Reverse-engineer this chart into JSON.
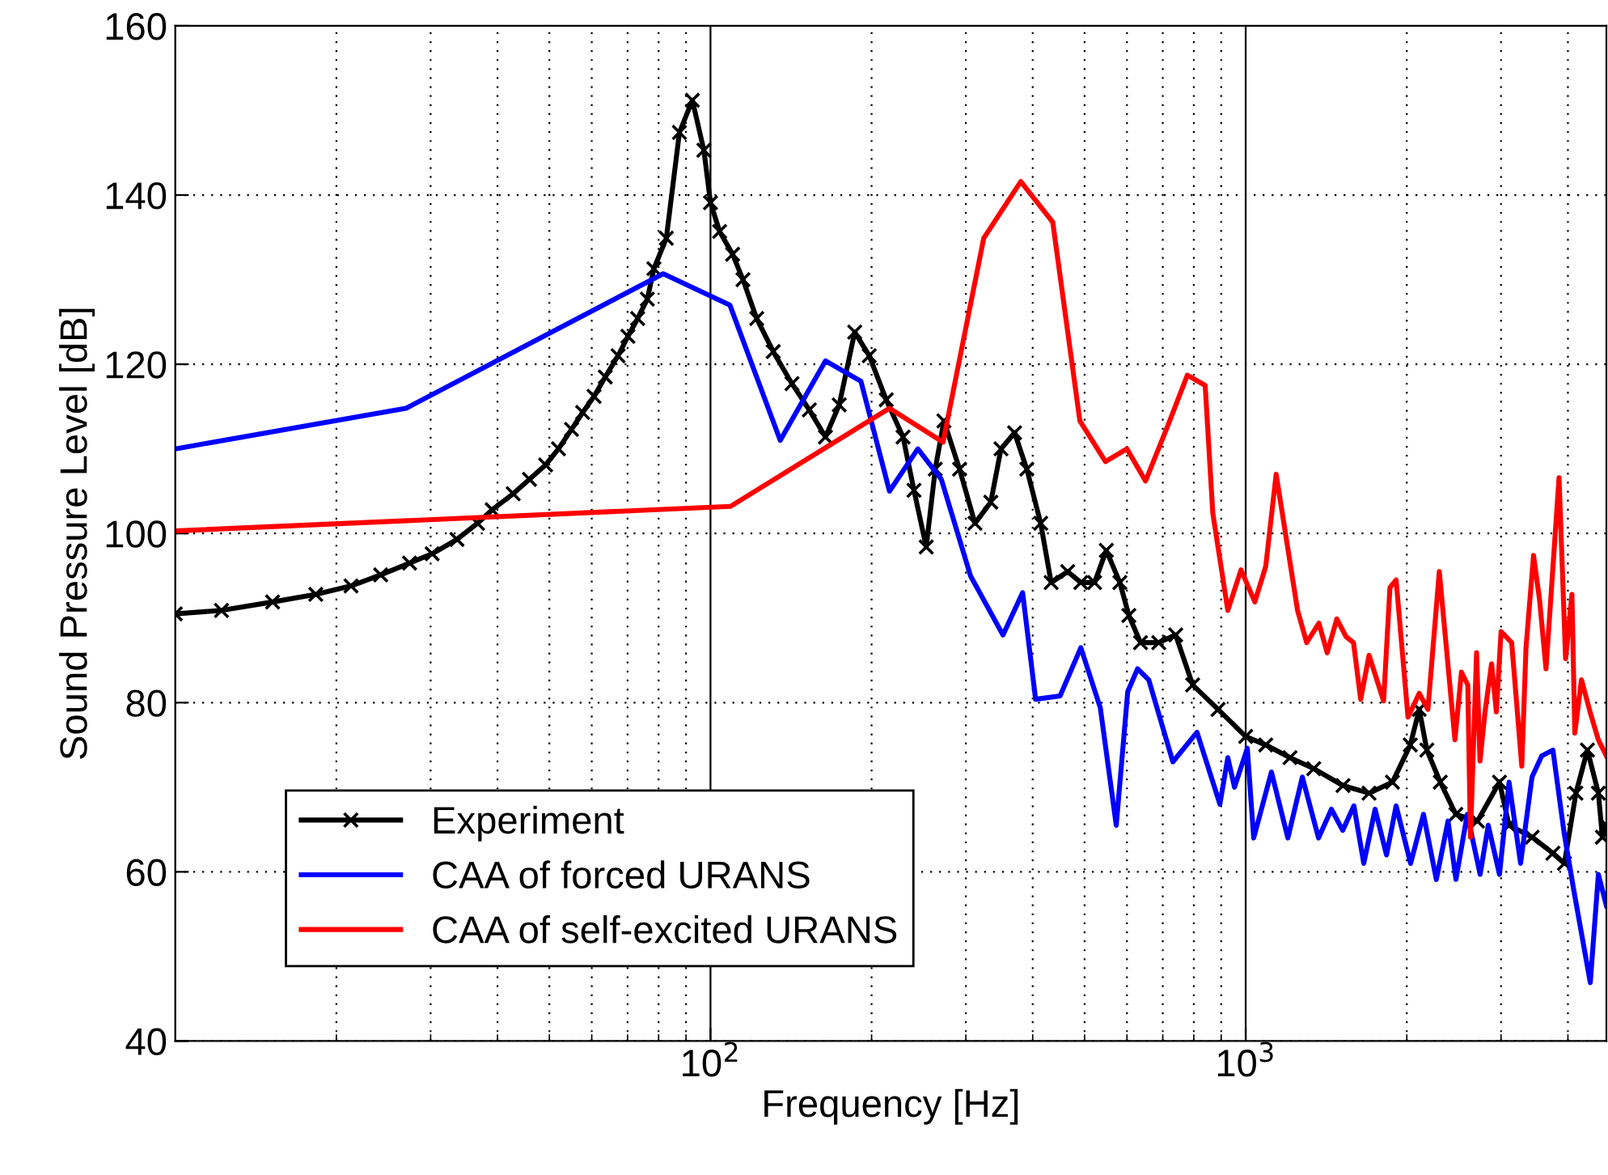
{
  "chart_data": {
    "type": "line",
    "xlabel": "Frequency [Hz]",
    "ylabel": "Sound Pressure Level [dB]",
    "log": "x",
    "xlim": [
      10,
      4720
    ],
    "ylim": [
      40,
      160
    ],
    "xticks": [
      {
        "value": 100,
        "label": "10$^{2}$"
      },
      {
        "value": 1000,
        "label": "10$^{3}$"
      }
    ],
    "yticks": [
      40,
      60,
      80,
      100,
      120,
      140,
      160
    ],
    "grid": true,
    "legend": "bottom left",
    "series": [
      {
        "name": "Experiment",
        "color": "#000000",
        "marker": "cross",
        "x": [
          10,
          12.2,
          15.2,
          18.3,
          21.3,
          24.2,
          27.4,
          30.2,
          33.6,
          36.7,
          39.1,
          42.8,
          45.9,
          49.2,
          52,
          55,
          57.7,
          60.6,
          63.6,
          67.2,
          70.1,
          73.1,
          76.2,
          78.4,
          82.7,
          87.5,
          92.5,
          97.2,
          100,
          104,
          110,
          115,
          122,
          131,
          142,
          153,
          164,
          174,
          186,
          198,
          213,
          229,
          240,
          253,
          263,
          273,
          292,
          312,
          334,
          349,
          370,
          390,
          414,
          433,
          465,
          492,
          522,
          549,
          582,
          605,
          636,
          688,
          740,
          796,
          888,
          1000,
          1090,
          1210,
          1340,
          1520,
          1700,
          1880,
          2030,
          2110,
          2180,
          2310,
          2470,
          2710,
          2980,
          3105,
          3430,
          3750,
          3940,
          4140,
          4350,
          4560,
          4640,
          4720
        ],
        "values": [
          90.5,
          90.9,
          91.9,
          92.8,
          93.8,
          95.1,
          96.5,
          97.6,
          99.3,
          101.2,
          102.8,
          104.7,
          106.4,
          108.1,
          110,
          112.3,
          114.3,
          116.2,
          118.5,
          121,
          123.3,
          125.4,
          127.7,
          131.3,
          134.9,
          147.4,
          151.2,
          145.3,
          139.1,
          135.7,
          133,
          130,
          125.4,
          121.5,
          117.7,
          114.6,
          111.4,
          115.2,
          123.8,
          121,
          115.8,
          111.4,
          105.1,
          98.4,
          107.6,
          113.3,
          107.6,
          101.2,
          103.7,
          110,
          111.9,
          107.6,
          101.2,
          94.2,
          95.5,
          94.2,
          94.2,
          98,
          94.2,
          90.3,
          87.1,
          87.1,
          88,
          82.1,
          79.2,
          76,
          75,
          73.5,
          72.2,
          70.2,
          69.3,
          70.6,
          75,
          79.2,
          74.4,
          70.6,
          66.8,
          66,
          70.6,
          65.5,
          64.1,
          62.2,
          61,
          69.3,
          74.4,
          69.3,
          64.1,
          65.5
        ]
      },
      {
        "name": "CAA of forced URANS",
        "color": "#0000ff",
        "x": [
          10,
          27,
          81.6,
          108.7,
          135,
          164,
          191,
          216,
          244,
          270,
          306,
          352,
          383,
          405,
          450,
          492,
          535,
          573,
          602,
          628,
          659,
          731,
          811,
          895,
          926,
          953,
          1007,
          1035,
          1117,
          1199,
          1276,
          1368,
          1446,
          1518,
          1593,
          1662,
          1745,
          1833,
          1910,
          2033,
          2149,
          2271,
          2388,
          2471,
          2594,
          2742,
          2839,
          2980,
          3105,
          3263,
          3427,
          3573,
          3750,
          3937,
          4103,
          4404,
          4560,
          4720
        ],
        "values": [
          110,
          114.8,
          130.7,
          127,
          111,
          120.4,
          118,
          105,
          110,
          106.4,
          95,
          88,
          93,
          80.4,
          80.8,
          86.5,
          79.4,
          65.5,
          81.3,
          84,
          82.7,
          73,
          76.5,
          68,
          73.5,
          70,
          74.6,
          64,
          71.8,
          64,
          71.2,
          64,
          67.4,
          64.9,
          67.8,
          61,
          67.4,
          62,
          67.8,
          61,
          66.8,
          59.1,
          66,
          59.1,
          66.8,
          59.7,
          65.5,
          59.7,
          70.6,
          61,
          71.2,
          73.7,
          74.4,
          64.5,
          57.8,
          46.9,
          59.7,
          56
        ]
      },
      {
        "name": "CAA of self-excited URANS",
        "color": "#ff0000",
        "x": [
          10,
          109,
          216,
          272,
          324,
          380,
          436,
          490,
          547,
          600,
          650,
          715,
          778,
          840,
          868,
          926,
          980,
          1040,
          1090,
          1140,
          1250,
          1300,
          1370,
          1420,
          1480,
          1540,
          1590,
          1640,
          1700,
          1810,
          1860,
          1910,
          2010,
          2110,
          2190,
          2300,
          2460,
          2530,
          2600,
          2630,
          2700,
          2740,
          2800,
          2880,
          2940,
          3000,
          3140,
          3280,
          3340,
          3450,
          3540,
          3640,
          3850,
          3960,
          4070,
          4120,
          4240,
          4400,
          4560,
          4720
        ],
        "values": [
          100.3,
          103.2,
          114.8,
          110.8,
          134.9,
          141.6,
          136.8,
          113.3,
          108.5,
          110,
          106.2,
          112.7,
          118.7,
          117.5,
          102.4,
          90.9,
          95.7,
          91.9,
          96.1,
          107,
          90.9,
          87.1,
          89.4,
          85.9,
          89.9,
          87.8,
          87.1,
          80.4,
          85.6,
          80.2,
          93.6,
          94.5,
          78.3,
          81.1,
          79.2,
          95.5,
          75.6,
          83.6,
          82.1,
          64.1,
          85.9,
          73.1,
          78.9,
          84.6,
          78.9,
          88.4,
          87.1,
          72.5,
          86.5,
          97.4,
          92.2,
          84,
          106.6,
          85.2,
          92.8,
          76.4,
          82.7,
          78.9,
          75.6,
          73.7
        ]
      }
    ]
  }
}
